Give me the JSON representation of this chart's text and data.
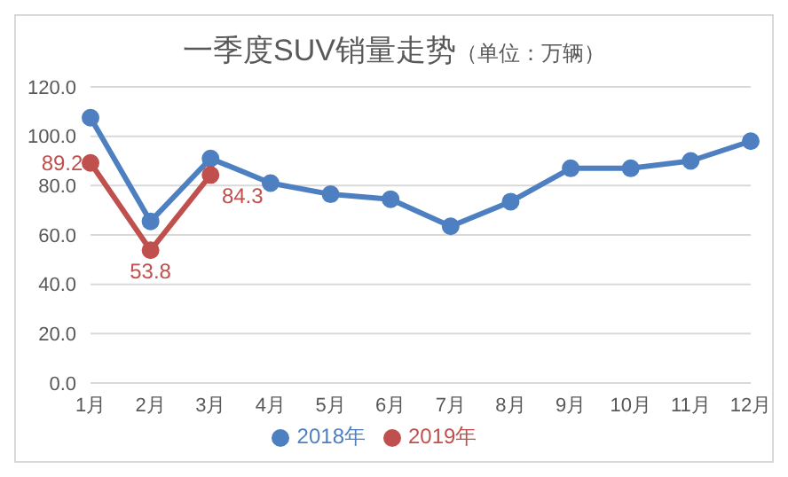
{
  "chart_data": {
    "type": "line",
    "title": "一季度SUV销量走势",
    "subtitle": "（单位：万辆）",
    "categories": [
      "1月",
      "2月",
      "3月",
      "4月",
      "5月",
      "6月",
      "7月",
      "8月",
      "9月",
      "10月",
      "11月",
      "12月"
    ],
    "series": [
      {
        "name": "2018年",
        "color": "#4e7fc0",
        "values": [
          107.5,
          65.5,
          91,
          81,
          76.5,
          74.5,
          63.5,
          73.5,
          87,
          87,
          90,
          98
        ]
      },
      {
        "name": "2019年",
        "color": "#c0504d",
        "values": [
          89.2,
          53.8,
          84.3,
          null,
          null,
          null,
          null,
          null,
          null,
          null,
          null,
          null
        ],
        "value_labels": [
          "89.2",
          "53.8",
          "84.3",
          null,
          null,
          null,
          null,
          null,
          null,
          null,
          null,
          null
        ]
      }
    ],
    "ylim": [
      0,
      120
    ],
    "yticks": [
      {
        "value": 0,
        "label": "0.0"
      },
      {
        "value": 20,
        "label": "20.0"
      },
      {
        "value": 40,
        "label": "40.0"
      },
      {
        "value": 60,
        "label": "60.0"
      },
      {
        "value": 80,
        "label": "80.0"
      },
      {
        "value": 100,
        "label": "100.0"
      },
      {
        "value": 120,
        "label": "120.0"
      }
    ],
    "grid": "y",
    "legend": "bottom",
    "marker": "circle",
    "line_style": "solid"
  }
}
